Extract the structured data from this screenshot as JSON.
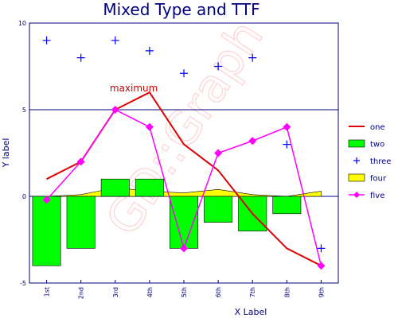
{
  "chart_data": {
    "type": "mixed",
    "title": "Mixed Type and TTF",
    "xlabel": "X Label",
    "ylabel": "Y label",
    "ylim": [
      -5,
      10
    ],
    "yticks": [
      "10",
      "5",
      "0",
      "-5"
    ],
    "categories": [
      "1st",
      "2nd",
      "3rd",
      "4th",
      "5th",
      "6th",
      "7th",
      "8th",
      "9th"
    ],
    "watermark": "GD::Graph",
    "annotation": {
      "text": "maximum",
      "series": "one",
      "category": "4th"
    },
    "legend_position": "right",
    "series": [
      {
        "name": "one",
        "type": "line",
        "color": "#dd0000",
        "values": [
          1,
          2,
          5,
          6,
          3,
          1.5,
          -1,
          -3,
          -4
        ]
      },
      {
        "name": "two",
        "type": "bar",
        "color": "#00ff00",
        "values": [
          -4,
          -3,
          1,
          1,
          -3,
          -1.5,
          -2,
          -1,
          0
        ]
      },
      {
        "name": "three",
        "type": "points",
        "color": "#0000ff",
        "values": [
          9,
          8,
          9,
          8.4,
          7.1,
          7.5,
          8,
          3,
          -3
        ]
      },
      {
        "name": "four",
        "type": "area",
        "color": "#ffff00",
        "values": [
          0,
          0.1,
          0.5,
          0.3,
          0.2,
          0.4,
          0.1,
          0,
          0.3
        ]
      },
      {
        "name": "five",
        "type": "linespoints",
        "color": "#ff00ff",
        "values": [
          -0.2,
          2,
          5,
          4,
          -3,
          2.5,
          3.2,
          4,
          -4
        ]
      }
    ]
  }
}
